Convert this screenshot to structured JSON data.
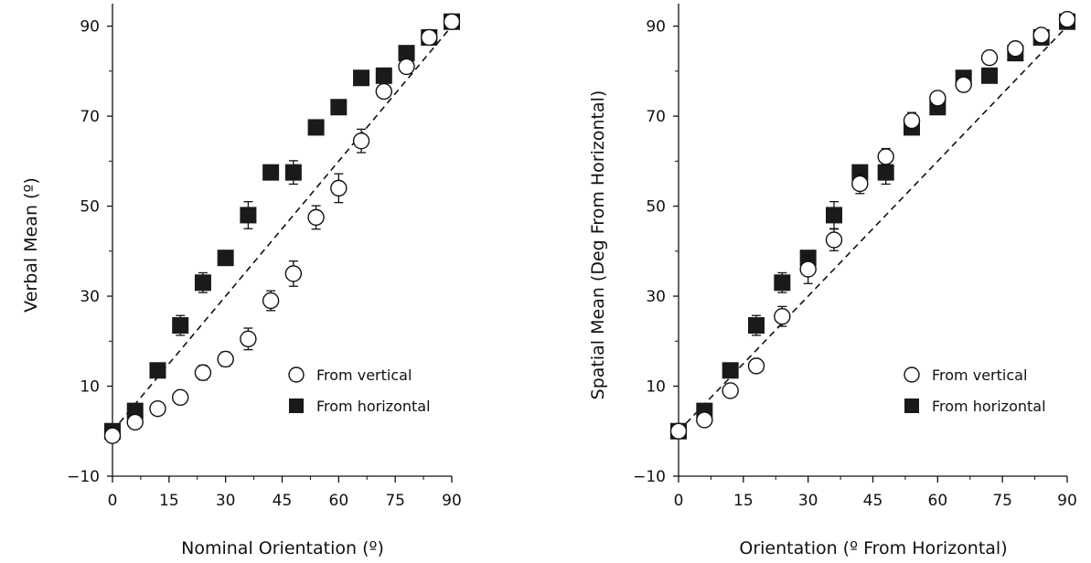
{
  "chart_data": [
    {
      "type": "scatter",
      "xlabel": "Nominal Orientation (º)",
      "ylabel": "Verbal Mean (º)",
      "xlim": [
        0,
        90
      ],
      "ylim": [
        -10,
        95
      ],
      "xticks": [
        0,
        15,
        30,
        45,
        60,
        75,
        90
      ],
      "yticks": [
        -10,
        10,
        30,
        50,
        70,
        90
      ],
      "grid": false,
      "legend_position": "bottom-right",
      "reference_line": {
        "from": [
          0,
          0
        ],
        "to": [
          90,
          90
        ],
        "style": "dashed"
      },
      "series": [
        {
          "name": "From vertical",
          "marker": "open-circle",
          "x": [
            0,
            6,
            12,
            18,
            24,
            30,
            36,
            42,
            48,
            54,
            60,
            66,
            72,
            78,
            84,
            90
          ],
          "y": [
            -1,
            2,
            5,
            7.5,
            13,
            16,
            20.5,
            29,
            35,
            47.5,
            54,
            64.5,
            75.5,
            81,
            87.5,
            91
          ],
          "err": [
            0,
            0,
            0,
            0,
            1.6,
            1.6,
            2.4,
            2.2,
            2.8,
            2.6,
            3.2,
            2.6,
            0,
            0,
            0,
            0
          ]
        },
        {
          "name": "From horizontal",
          "marker": "filled-square",
          "x": [
            0,
            6,
            12,
            18,
            24,
            30,
            36,
            42,
            48,
            54,
            60,
            66,
            72,
            78,
            84,
            90
          ],
          "y": [
            0,
            4.5,
            13.5,
            23.5,
            33,
            38.5,
            48,
            57.5,
            57.5,
            67.5,
            72,
            78.5,
            79,
            84,
            87.5,
            91
          ],
          "err": [
            0,
            0,
            0,
            2.2,
            2.2,
            0,
            3,
            0,
            2.6,
            0,
            0,
            0,
            0,
            0,
            0,
            0
          ]
        }
      ]
    },
    {
      "type": "scatter",
      "xlabel": "Orientation (º From Horizontal)",
      "ylabel": "Spatial Mean (Deg From Horizontal)",
      "xlim": [
        0,
        90
      ],
      "ylim": [
        -10,
        95
      ],
      "xticks": [
        0,
        15,
        30,
        45,
        60,
        75,
        90
      ],
      "yticks": [
        -10,
        10,
        30,
        50,
        70,
        90
      ],
      "grid": false,
      "legend_position": "bottom-right",
      "reference_line": {
        "from": [
          0,
          0
        ],
        "to": [
          90,
          90
        ],
        "style": "dashed"
      },
      "series": [
        {
          "name": "From vertical",
          "marker": "open-circle",
          "x": [
            0,
            6,
            12,
            18,
            24,
            30,
            36,
            42,
            48,
            54,
            60,
            66,
            72,
            78,
            84,
            90
          ],
          "y": [
            0,
            2.5,
            9,
            14.5,
            25.5,
            36,
            42.5,
            55,
            61,
            69,
            74,
            77,
            83,
            85,
            88,
            91.5
          ],
          "err": [
            0,
            0,
            0,
            0,
            2.2,
            3.2,
            2.4,
            2.2,
            1.8,
            1.8,
            1.2,
            0,
            0,
            0,
            0,
            0
          ]
        },
        {
          "name": "From horizontal",
          "marker": "filled-square",
          "x": [
            0,
            6,
            12,
            18,
            24,
            30,
            36,
            42,
            48,
            54,
            60,
            66,
            72,
            78,
            84,
            90
          ],
          "y": [
            0,
            4.5,
            13.5,
            23.5,
            33,
            38.5,
            48,
            57.5,
            57.5,
            67.5,
            72,
            78.5,
            79,
            84,
            87.5,
            91
          ],
          "err": [
            0,
            0,
            0,
            2.2,
            2.2,
            0,
            3,
            0,
            2.6,
            0,
            0,
            0,
            0,
            0,
            0,
            0
          ]
        }
      ]
    }
  ]
}
